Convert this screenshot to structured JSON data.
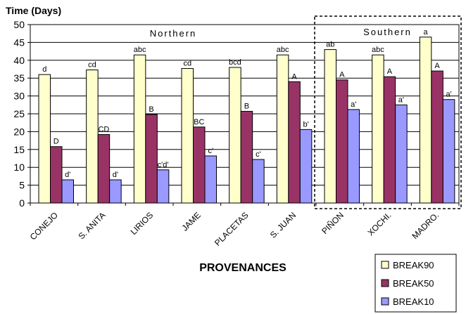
{
  "chart_data": {
    "type": "bar",
    "ylabel": "Time (Days)",
    "xlabel": "PROVENANCES",
    "ylim": [
      0,
      50
    ],
    "yticks": [
      0,
      5,
      10,
      15,
      20,
      25,
      30,
      35,
      40,
      45,
      50
    ],
    "grid": "horizontal",
    "legend_position": "bottom-right",
    "categories": [
      "CONEJO",
      "S. ANITA",
      "LIRIOS",
      "JAME",
      "PLACETAS",
      "S. JUAN",
      "PIÑON",
      "XOCHI.",
      "MADRO."
    ],
    "series": [
      {
        "name": "BREAK90",
        "color": "#FFFFCC",
        "values": [
          36,
          37.3,
          41.5,
          37.7,
          38,
          41.5,
          43,
          41.5,
          46.5
        ],
        "labels": [
          "d",
          "cd",
          "abc",
          "cd",
          "bcd",
          "abc",
          "ab",
          "abc",
          "a"
        ]
      },
      {
        "name": "BREAK50",
        "color": "#993366",
        "values": [
          15.8,
          19.2,
          24.8,
          21.3,
          25.7,
          34,
          34.5,
          35.4,
          37
        ],
        "labels": [
          "D",
          "CD",
          "B",
          "BC",
          "B",
          "A",
          "A",
          "A",
          "A"
        ]
      },
      {
        "name": "BREAK10",
        "color": "#9999FF",
        "values": [
          6.5,
          6.5,
          9.3,
          13.2,
          12.2,
          20.6,
          26.2,
          27.5,
          29
        ],
        "labels": [
          "d'",
          "d'",
          "c'd'",
          "c'",
          "c'",
          "b'",
          "a'",
          "a'",
          "a'"
        ]
      }
    ],
    "annotations": [
      {
        "text": "Northern",
        "from_category": 0,
        "to_category": 5
      },
      {
        "text": "Southern",
        "from_category": 6,
        "to_category": 8,
        "boxed": true
      }
    ]
  }
}
